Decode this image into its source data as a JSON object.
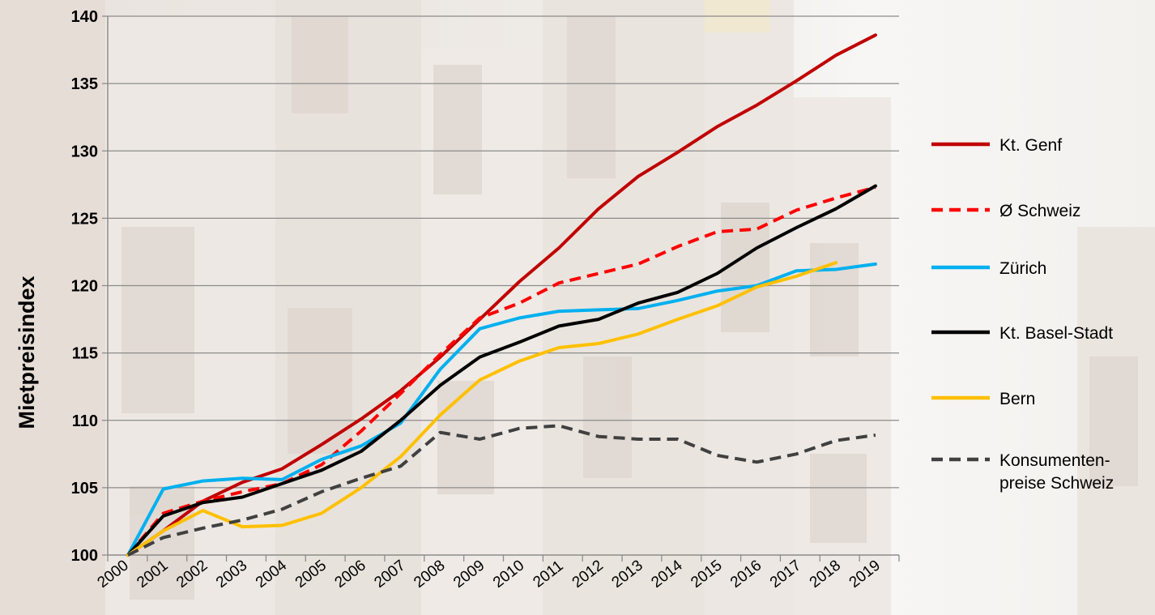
{
  "chart_data": {
    "type": "line",
    "title": "",
    "xlabel": "",
    "ylabel": "Mietpreisindex",
    "ylim": [
      100,
      140
    ],
    "yticks": [
      "100",
      "105",
      "110",
      "115",
      "120",
      "125",
      "130",
      "135",
      "140"
    ],
    "categories": [
      "2000",
      "2001",
      "2002",
      "2003",
      "2004",
      "2005",
      "2006",
      "2007",
      "2008",
      "2009",
      "2010",
      "2011",
      "2012",
      "2013",
      "2014",
      "2015",
      "2016",
      "2017",
      "2018",
      "2019"
    ],
    "grid": true,
    "legend_position": "right",
    "series": [
      {
        "name": "Kt. Genf",
        "legend_lines": [
          "Kt. Genf"
        ],
        "color": "#c00000",
        "dash": "solid",
        "values": [
          100,
          101.8,
          104.0,
          105.4,
          106.4,
          108.2,
          110.1,
          112.2,
          114.7,
          117.5,
          120.3,
          122.8,
          125.7,
          128.1,
          129.9,
          131.8,
          133.4,
          135.2,
          137.1,
          138.6
        ]
      },
      {
        "name": "Ø Schweiz",
        "legend_lines": [
          "Ø Schweiz"
        ],
        "color": "#ff0000",
        "dash": "dashed",
        "values": [
          100,
          103.1,
          104.0,
          104.7,
          105.3,
          106.7,
          109.2,
          112.0,
          114.9,
          117.6,
          118.7,
          120.2,
          120.9,
          121.6,
          122.9,
          124.0,
          124.2,
          125.6,
          126.5,
          127.3
        ]
      },
      {
        "name": "Zürich",
        "legend_lines": [
          "Zürich"
        ],
        "color": "#00b0f0",
        "dash": "solid",
        "values": [
          100,
          104.9,
          105.5,
          105.7,
          105.6,
          107.1,
          108.1,
          109.8,
          113.8,
          116.8,
          117.6,
          118.1,
          118.2,
          118.3,
          118.9,
          119.6,
          120.0,
          121.1,
          121.2,
          121.6
        ]
      },
      {
        "name": "Kt. Basel-Stadt",
        "legend_lines": [
          "Kt. Basel-Stadt"
        ],
        "color": "#000000",
        "dash": "solid",
        "values": [
          100,
          102.9,
          103.9,
          104.3,
          105.3,
          106.3,
          107.7,
          110.0,
          112.6,
          114.7,
          115.8,
          117.0,
          117.5,
          118.7,
          119.5,
          120.9,
          122.8,
          124.3,
          125.7,
          127.4
        ]
      },
      {
        "name": "Bern",
        "legend_lines": [
          "Bern"
        ],
        "color": "#ffc000",
        "dash": "solid",
        "values": [
          100,
          101.8,
          103.3,
          102.1,
          102.2,
          103.1,
          105.0,
          107.3,
          110.4,
          113.0,
          114.4,
          115.4,
          115.7,
          116.4,
          117.5,
          118.5,
          119.9,
          120.7,
          121.7,
          null
        ]
      },
      {
        "name": "Konsumentenpreise Schweiz",
        "legend_lines": [
          "Konsumenten-",
          "preise Schweiz"
        ],
        "color": "#404040",
        "dash": "dashed",
        "values": [
          100,
          101.3,
          102.0,
          102.6,
          103.4,
          104.7,
          105.7,
          106.6,
          109.1,
          108.6,
          109.4,
          109.6,
          108.8,
          108.6,
          108.6,
          107.4,
          106.9,
          107.5,
          108.5,
          108.9
        ]
      }
    ]
  }
}
